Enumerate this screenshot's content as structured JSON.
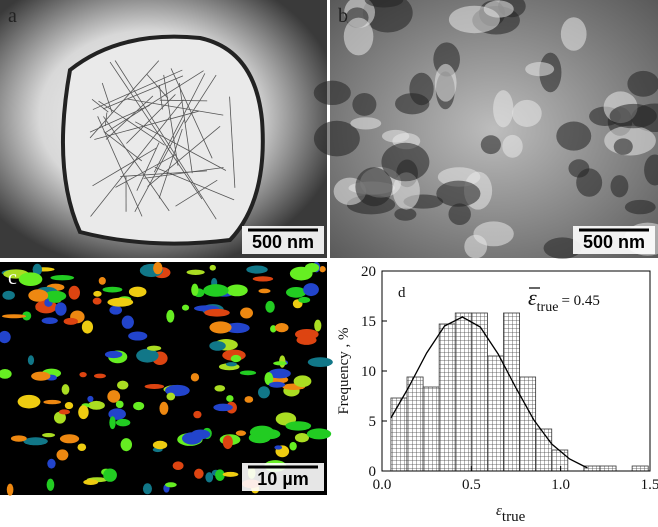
{
  "panels": [
    {
      "label": "a",
      "scale_bar": "500 nm"
    },
    {
      "label": "b",
      "scale_bar": "500 nm"
    },
    {
      "label": "c",
      "scale_bar": "10 µm"
    }
  ],
  "chart_data": {
    "type": "histogram",
    "label": "d",
    "xlabel": {
      "symbol": "ε",
      "subscript": "true"
    },
    "ylabel": "Frequency , %",
    "annotation": {
      "symbol": "ε",
      "subscript": "true",
      "text": "= 0.45"
    },
    "bins": [
      0.05,
      0.14,
      0.23,
      0.32,
      0.41,
      0.5,
      0.59,
      0.68,
      0.77,
      0.86,
      0.95,
      1.04,
      1.13,
      1.22,
      1.31,
      1.4,
      1.49
    ],
    "values": [
      7.3,
      9.4,
      8.4,
      14.7,
      15.8,
      15.8,
      11.5,
      15.8,
      9.4,
      4.2,
      2.1,
      0,
      0.5,
      0.5,
      0,
      0.5
    ],
    "color": "#333333",
    "fit": {
      "color": "#000000",
      "x": [
        0.05,
        0.15,
        0.25,
        0.35,
        0.45,
        0.55,
        0.65,
        0.75,
        0.85,
        0.95,
        1.05,
        1.15
      ],
      "y": [
        5.3,
        8.4,
        11.8,
        14.5,
        15.4,
        14.4,
        11.7,
        8.3,
        5.1,
        2.7,
        1.2,
        0.3
      ]
    },
    "xlim": [
      0,
      1.5
    ],
    "xticks": [
      {
        "value": 0,
        "label": "0.0"
      },
      0.5,
      {
        "value": 1,
        "label": "1.0"
      },
      1.5
    ],
    "ylim": [
      0,
      20
    ],
    "yticks": [
      0,
      5,
      10,
      15,
      20
    ]
  }
}
